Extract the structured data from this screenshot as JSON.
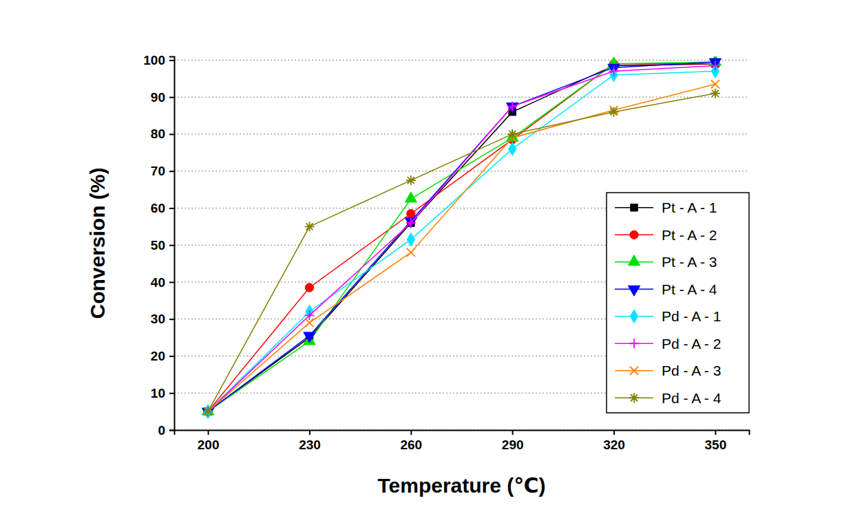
{
  "chart_data": {
    "type": "line",
    "x_label": "Temperature (℃)",
    "y_label": "Conversion (%)",
    "x": [
      200,
      230,
      260,
      290,
      320,
      350
    ],
    "xlim": [
      190,
      360
    ],
    "xticks": [
      200,
      230,
      260,
      290,
      320,
      350
    ],
    "ylim": [
      0,
      101
    ],
    "yticks": [
      0,
      10,
      20,
      30,
      40,
      50,
      60,
      70,
      80,
      90,
      100
    ],
    "grid": true,
    "legend": "lower right",
    "series": [
      {
        "name": "Pt - A - 1",
        "color": "#000000",
        "marker": "square",
        "values": [
          5,
          25,
          56,
          86,
          98.5,
          99
        ]
      },
      {
        "name": "Pt - A - 2",
        "color": "#ff0000",
        "marker": "circle",
        "values": [
          5,
          38.5,
          58.5,
          78.5,
          99,
          99
        ]
      },
      {
        "name": "Pt - A - 3",
        "color": "#00e000",
        "marker": "triangle-up",
        "values": [
          5,
          24,
          62.5,
          79,
          99,
          99.5
        ]
      },
      {
        "name": "Pt - A - 4",
        "color": "#0000ff",
        "marker": "triangle-down",
        "values": [
          5,
          25.5,
          56.5,
          87.5,
          98,
          99.5
        ]
      },
      {
        "name": "Pd - A - 1",
        "color": "#00e5ff",
        "marker": "diamond",
        "values": [
          5,
          32,
          51.5,
          76,
          96,
          97
        ]
      },
      {
        "name": "Pd - A - 2",
        "color": "#ff00ff",
        "marker": "plus",
        "values": [
          5,
          31,
          56,
          87.5,
          97,
          98.5
        ]
      },
      {
        "name": "Pd - A - 3",
        "color": "#ff8000",
        "marker": "cross",
        "values": [
          5,
          29,
          48,
          79,
          86.5,
          93.5
        ]
      },
      {
        "name": "Pd - A - 4",
        "color": "#808000",
        "marker": "star",
        "values": [
          5,
          55,
          67.5,
          80,
          86,
          91
        ]
      }
    ]
  }
}
